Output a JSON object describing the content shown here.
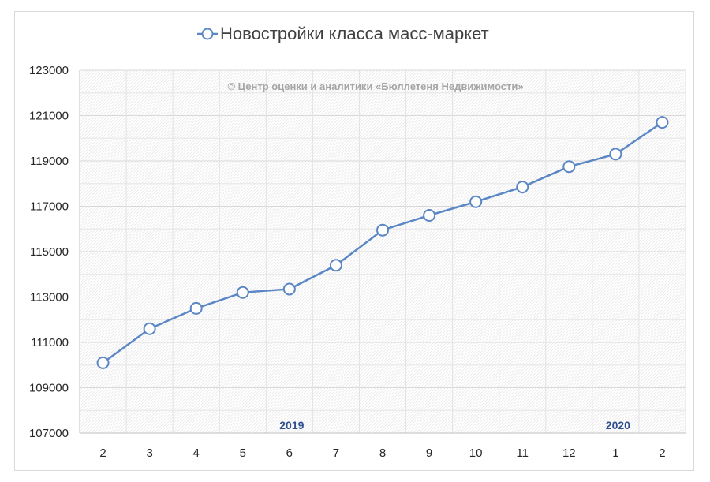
{
  "chart_data": {
    "type": "line",
    "title": "Новостройки класса масс-маркет",
    "watermark": "© Центр оценки и аналитики «Бюллетеня Недвижимости»",
    "categories": [
      "2",
      "3",
      "4",
      "5",
      "6",
      "7",
      "8",
      "9",
      "10",
      "11",
      "12",
      "1",
      "2"
    ],
    "year_labels": [
      {
        "label": "2019",
        "category_index": 4
      },
      {
        "label": "2020",
        "category_index": 11
      }
    ],
    "series": [
      {
        "name": "Новостройки класса масс-маркет",
        "values": [
          110100,
          111600,
          112500,
          113200,
          113350,
          114400,
          115950,
          116600,
          117200,
          117850,
          118750,
          119300,
          120700
        ],
        "color": "#5b87c5"
      }
    ],
    "y_ticks": [
      "107000",
      "109000",
      "111000",
      "113000",
      "115000",
      "117000",
      "119000",
      "121000",
      "123000"
    ],
    "ylim": [
      107000,
      123000
    ],
    "xlabel": "",
    "ylabel": "",
    "grid": true,
    "legend": "top-center"
  }
}
